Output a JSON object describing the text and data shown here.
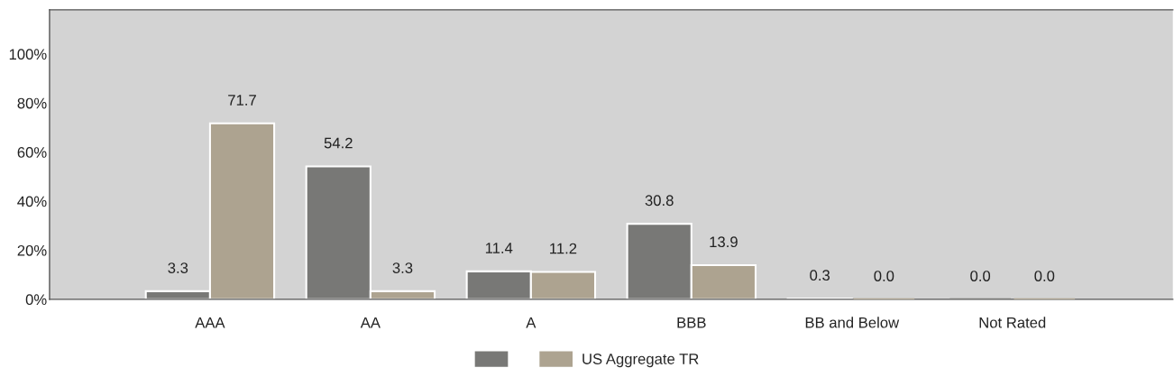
{
  "chart_data": {
    "type": "bar",
    "categories": [
      "AAA",
      "AA",
      "A",
      "BBB",
      "BB and Below",
      "Not Rated"
    ],
    "series": [
      {
        "color": "#787876",
        "values": [
          3.3,
          54.2,
          11.4,
          30.8,
          0.3,
          0.0
        ],
        "value_labels": [
          "3.3",
          "54.2",
          "11.4",
          "30.8",
          "0.3",
          "0.0"
        ]
      },
      {
        "name": "US Aggregate TR",
        "color": "#ada390",
        "values": [
          71.7,
          3.3,
          11.2,
          13.9,
          0.0,
          0.0
        ],
        "value_labels": [
          "71.7",
          "3.3",
          "11.2",
          "13.9",
          "0.0",
          "0.0"
        ]
      }
    ],
    "ylim": [
      0,
      118
    ],
    "yticks": [
      {
        "value": 0,
        "label": "0%"
      },
      {
        "value": 20,
        "label": "20%"
      },
      {
        "value": 40,
        "label": "40%"
      },
      {
        "value": 60,
        "label": "60%"
      },
      {
        "value": 80,
        "label": "80%"
      },
      {
        "value": 100,
        "label": "100%"
      }
    ],
    "grid": false,
    "legend": "bottom"
  }
}
